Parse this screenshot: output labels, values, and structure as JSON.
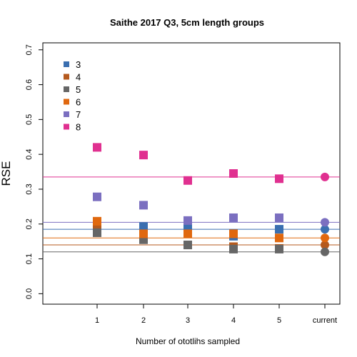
{
  "chart_data": {
    "type": "scatter",
    "title": "Saithe 2017 Q3, 5cm length groups",
    "xlabel": "Number of ototlihs sampled",
    "ylabel": "RSE",
    "categories": [
      "1",
      "2",
      "3",
      "4",
      "5",
      "current"
    ],
    "ylim": [
      -0.03,
      0.72
    ],
    "yticks": [
      "0.0",
      "0.1",
      "0.2",
      "0.3",
      "0.4",
      "0.5",
      "0.6",
      "0.7"
    ],
    "grid": false,
    "legend_position": "top-left",
    "series": [
      {
        "name": "3",
        "color": "#3a6fb0",
        "values": [
          0.185,
          0.193,
          0.187,
          0.165,
          0.185
        ],
        "current": 0.185
      },
      {
        "name": "4",
        "color": "#b55a1e",
        "values": [
          0.19,
          0.16,
          0.14,
          0.135,
          0.13
        ],
        "current": 0.14
      },
      {
        "name": "5",
        "color": "#666666",
        "values": [
          0.175,
          0.155,
          0.14,
          0.128,
          0.128
        ],
        "current": 0.12
      },
      {
        "name": "6",
        "color": "#e0680f",
        "values": [
          0.208,
          0.172,
          0.172,
          0.172,
          0.16
        ],
        "current": 0.16
      },
      {
        "name": "7",
        "color": "#7b6fc0",
        "values": [
          0.278,
          0.254,
          0.21,
          0.218,
          0.218
        ],
        "current": 0.205
      },
      {
        "name": "8",
        "color": "#e03090",
        "values": [
          0.42,
          0.398,
          0.325,
          0.345,
          0.33
        ],
        "current": 0.335
      }
    ]
  }
}
